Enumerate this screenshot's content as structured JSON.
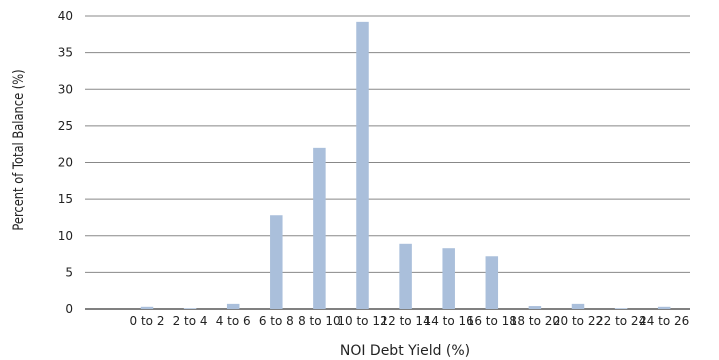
{
  "chart_data": {
    "type": "bar",
    "title": "",
    "xlabel": "NOI Debt Yield (%)",
    "ylabel": "Percent of Total Balance (%)",
    "ylim": [
      0,
      40
    ],
    "yticks": [
      0,
      5,
      10,
      15,
      20,
      25,
      30,
      35,
      40
    ],
    "grid": true,
    "categories": [
      "0 to 2",
      "2 to 4",
      "4 to 6",
      "6 to 8",
      "8 to 10",
      "10 to 12",
      "12 to 14",
      "14 to 16",
      "16 to 18",
      "18 to 20",
      "20 to 22",
      "22 to 24",
      "24 to 26"
    ],
    "values": [
      0.3,
      0.1,
      0.7,
      12.8,
      22.0,
      39.2,
      8.9,
      8.3,
      7.2,
      0.4,
      0.7,
      0.1,
      0.3
    ],
    "colors": {
      "bar": "#aabfdb",
      "grid": "#888888",
      "axis": "#000000"
    }
  }
}
